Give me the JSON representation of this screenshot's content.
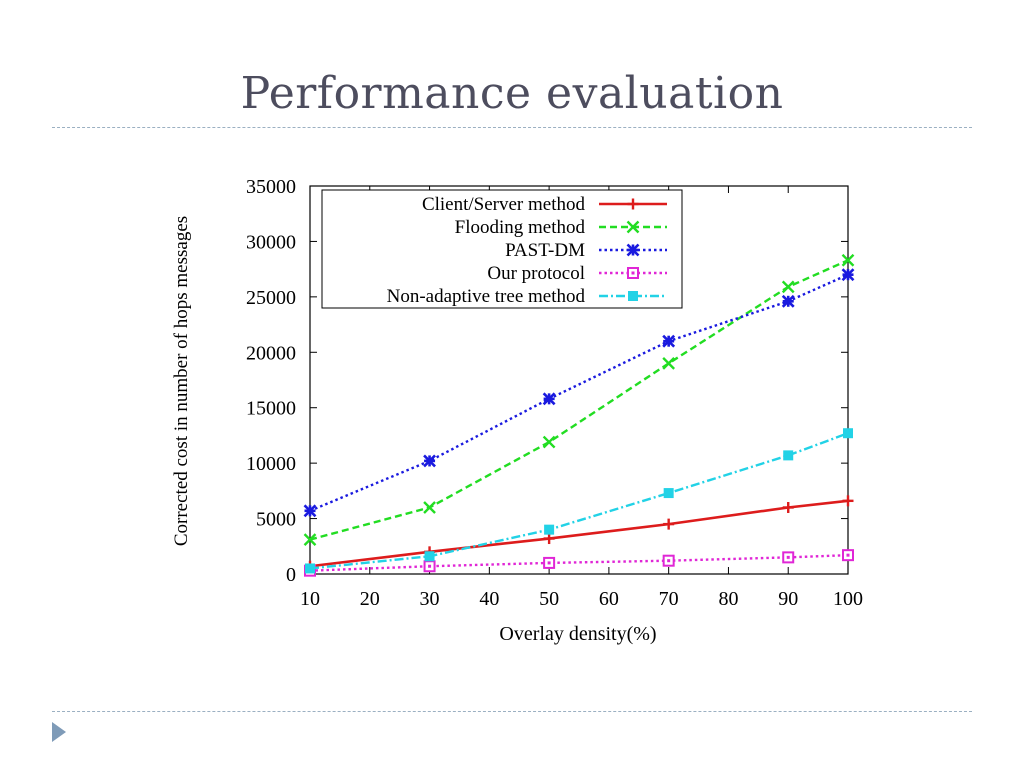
{
  "slide": {
    "title": "Performance evaluation"
  },
  "chart_data": {
    "type": "line",
    "title": "",
    "xlabel": "Overlay density(%)",
    "ylabel": "Corrected cost in number of hops messages",
    "xlim": [
      10,
      100
    ],
    "ylim": [
      0,
      35000
    ],
    "xticks": [
      10,
      20,
      30,
      40,
      50,
      60,
      70,
      80,
      90,
      100
    ],
    "yticks": [
      0,
      5000,
      10000,
      15000,
      20000,
      25000,
      30000,
      35000
    ],
    "grid": false,
    "legend_position": "top-left",
    "x": [
      10,
      30,
      50,
      70,
      90,
      100
    ],
    "series": [
      {
        "name": "Client/Server method",
        "color": "#dd1c1c",
        "dash": "solid",
        "marker": "plus",
        "values": [
          700,
          2000,
          3200,
          4500,
          6000,
          6600
        ]
      },
      {
        "name": "Flooding method",
        "color": "#22dd22",
        "dash": "dash",
        "marker": "x",
        "values": [
          3100,
          6000,
          11900,
          19000,
          25900,
          28300
        ]
      },
      {
        "name": "PAST-DM",
        "color": "#1a1adf",
        "dash": "dot",
        "marker": "star",
        "values": [
          5700,
          10200,
          15800,
          21000,
          24600,
          27000
        ]
      },
      {
        "name": "Our protocol",
        "color": "#e026d6",
        "dash": "dot",
        "marker": "square-open",
        "values": [
          300,
          700,
          1000,
          1200,
          1500,
          1700
        ]
      },
      {
        "name": "Non-adaptive tree method",
        "color": "#22d2e6",
        "dash": "dashdot",
        "marker": "square-filled",
        "values": [
          500,
          1600,
          4000,
          7300,
          10700,
          12700
        ]
      }
    ]
  }
}
